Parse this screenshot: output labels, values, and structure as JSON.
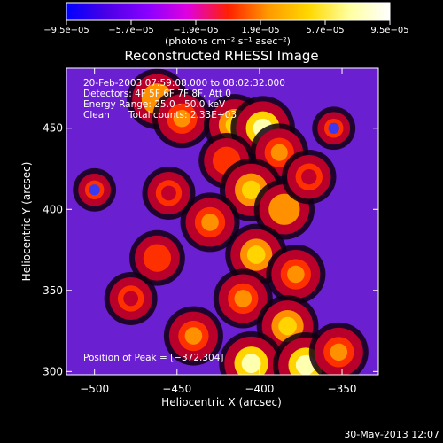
{
  "chart_data": {
    "type": "heatmap",
    "title": "Reconstructed RHESSI Image",
    "xlabel": "Heliocentric X (arcsec)",
    "ylabel": "Heliocentric Y (arcsec)",
    "xlim": [
      -517,
      -328
    ],
    "ylim": [
      298,
      487
    ],
    "x_ticks": [
      -500,
      -450,
      -400,
      -350
    ],
    "y_ticks": [
      300,
      350,
      400,
      450
    ],
    "x_tick_labels": [
      "−500",
      "−450",
      "−400",
      "−350"
    ],
    "y_tick_labels": [
      "300",
      "350",
      "400",
      "450"
    ],
    "colorbar": {
      "range": [
        -9.5e-05,
        9.5e-05
      ],
      "tick_values": [
        -9.5e-05,
        -5.7e-05,
        -1.9e-05,
        1.9e-05,
        5.7e-05,
        9.5e-05
      ],
      "tick_labels": [
        "−9.5e−05",
        "−5.7e−05",
        "−1.9e−05",
        "1.9e−05",
        "5.7e−05",
        "9.5e−05"
      ],
      "units": "(photons cm⁻² s⁻¹ asec⁻²)",
      "colors": [
        "#0000ff",
        "#4a00e6",
        "#8800ff",
        "#e000e0",
        "#ff2000",
        "#ff9a00",
        "#ffd800",
        "#ffffa0",
        "#ffffff"
      ]
    },
    "peak_position": [
      -372,
      304
    ],
    "hot_spots": [
      {
        "x": -462,
        "y": 468,
        "v": 0.8
      },
      {
        "x": -447,
        "y": 456,
        "v": 0.75
      },
      {
        "x": -415,
        "y": 452,
        "v": 0.85
      },
      {
        "x": -398,
        "y": 450,
        "v": 0.95
      },
      {
        "x": -388,
        "y": 435,
        "v": 0.7
      },
      {
        "x": -420,
        "y": 430,
        "v": 0.6
      },
      {
        "x": -405,
        "y": 412,
        "v": 0.9
      },
      {
        "x": -385,
        "y": 400,
        "v": 0.8
      },
      {
        "x": -430,
        "y": 392,
        "v": 0.75
      },
      {
        "x": -402,
        "y": 372,
        "v": 0.85
      },
      {
        "x": -378,
        "y": 360,
        "v": 0.75
      },
      {
        "x": -410,
        "y": 345,
        "v": 0.75
      },
      {
        "x": -383,
        "y": 328,
        "v": 0.85
      },
      {
        "x": -440,
        "y": 322,
        "v": 0.75
      },
      {
        "x": -405,
        "y": 305,
        "v": 0.95
      },
      {
        "x": -372,
        "y": 304,
        "v": 1.0
      },
      {
        "x": -352,
        "y": 312,
        "v": 0.75
      },
      {
        "x": -462,
        "y": 370,
        "v": 0.6
      },
      {
        "x": -478,
        "y": 345,
        "v": 0.5
      },
      {
        "x": -455,
        "y": 410,
        "v": 0.5
      },
      {
        "x": -370,
        "y": 420,
        "v": 0.55
      },
      {
        "x": -500,
        "y": 412,
        "v": 0.1
      },
      {
        "x": -355,
        "y": 450,
        "v": 0.1
      }
    ],
    "annotations": {
      "time_range": "20-Feb-2003 07:59:08.000 to 08:02:32.000",
      "detectors": "Detectors: 4F 5F 6F 7F 8F, Att 0",
      "energy_range": "Energy Range: 25.0 - 50.0 keV",
      "method": "Clean",
      "total_counts": "Total counts: 2.33E+03",
      "peak_label": "Position of Peak = [−372,304]"
    },
    "footer_date": "30-May-2013 12:07"
  }
}
